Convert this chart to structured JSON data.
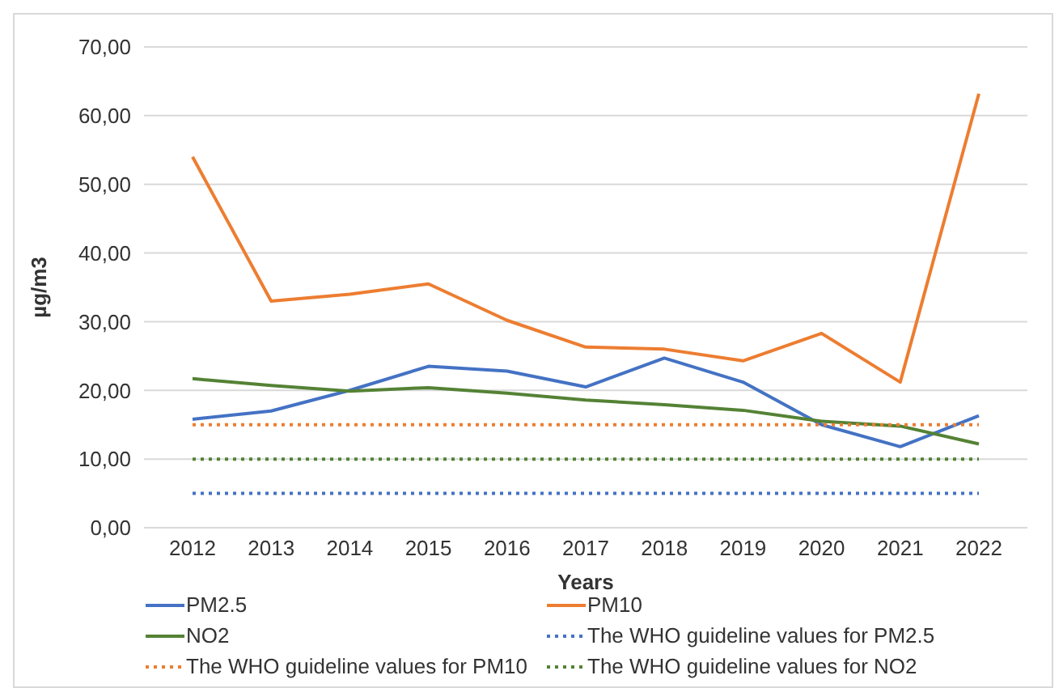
{
  "chart_data": {
    "type": "line",
    "xlabel": "Years",
    "ylabel": "µg/m3",
    "categories": [
      "2012",
      "2013",
      "2014",
      "2015",
      "2016",
      "2017",
      "2018",
      "2019",
      "2020",
      "2021",
      "2022"
    ],
    "series": [
      {
        "name": "PM2.5",
        "color": "#4472c4",
        "values": [
          15.8,
          17,
          20,
          23.5,
          22.8,
          20.5,
          24.7,
          21.2,
          15,
          11.8,
          16.3
        ]
      },
      {
        "name": "PM10",
        "color": "#ed7d31",
        "values": [
          54,
          33,
          34,
          35.5,
          30.2,
          26.3,
          26,
          24.3,
          28.3,
          21.2,
          63.2
        ]
      },
      {
        "name": "NO2",
        "color": "#548235",
        "values": [
          21.7,
          20.7,
          19.9,
          20.4,
          19.6,
          18.6,
          17.9,
          17.1,
          15.5,
          14.8,
          12.2
        ]
      },
      {
        "name": "The WHO guideline values for PM2.5",
        "color": "#4472c4",
        "line_style": "dotted",
        "values": [
          5,
          5,
          5,
          5,
          5,
          5,
          5,
          5,
          5,
          5,
          5
        ]
      },
      {
        "name": "The WHO guideline values for PM10",
        "color": "#ed7d31",
        "line_style": "dotted",
        "values": [
          15,
          15,
          15,
          15,
          15,
          15,
          15,
          15,
          15,
          15,
          15
        ]
      },
      {
        "name": "The WHO guideline values for NO2",
        "color": "#548235",
        "line_style": "dotted",
        "values": [
          10,
          10,
          10,
          10,
          10,
          10,
          10,
          10,
          10,
          10,
          10
        ]
      }
    ],
    "ylim": [
      0,
      70
    ],
    "yticks": [
      {
        "value": 0,
        "label": "0,00"
      },
      {
        "value": 10,
        "label": "10,00"
      },
      {
        "value": 20,
        "label": "20,00"
      },
      {
        "value": 30,
        "label": "30,00"
      },
      {
        "value": 40,
        "label": "40,00"
      },
      {
        "value": 50,
        "label": "50,00"
      },
      {
        "value": 60,
        "label": "60,00"
      },
      {
        "value": 70,
        "label": "70,00"
      }
    ],
    "grid": "y",
    "legend": "bottom",
    "marker": "none",
    "line_style": "solid"
  }
}
